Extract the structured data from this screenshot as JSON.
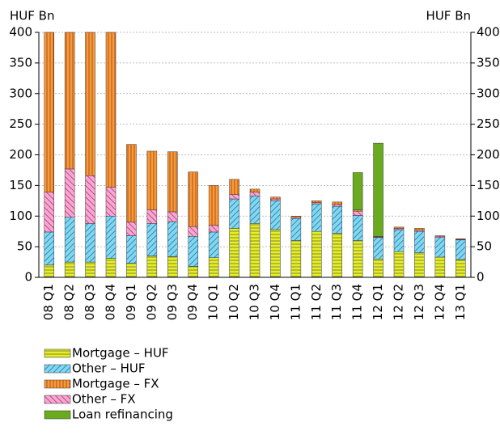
{
  "chart_data": {
    "type": "stacked-bar",
    "y_label": "HUF Bn",
    "y2_label": "HUF Bn",
    "categories": [
      "08 Q1",
      "08 Q2",
      "08 Q3",
      "08 Q4",
      "09 Q1",
      "09 Q2",
      "09 Q3",
      "09 Q4",
      "10 Q1",
      "10 Q2",
      "10 Q3",
      "10 Q4",
      "11 Q1",
      "11 Q2",
      "11 Q3",
      "11 Q4",
      "12 Q1",
      "12 Q2",
      "12 Q3",
      "12 Q4",
      "13 Q1"
    ],
    "series": [
      {
        "name": "Mortgage – HUF",
        "color": "#e6f020",
        "values": [
          20,
          25,
          25,
          31,
          23,
          35,
          34,
          18,
          32,
          80,
          88,
          78,
          60,
          75,
          72,
          60,
          30,
          42,
          40,
          33,
          29
        ]
      },
      {
        "name": "Other – HUF",
        "color": "#80d8f2",
        "values": [
          54,
          73,
          63,
          69,
          45,
          53,
          57,
          49,
          42,
          48,
          45,
          47,
          36,
          45,
          44,
          41,
          35,
          36,
          35,
          32,
          32
        ]
      },
      {
        "name": "Mortgage – FX",
        "color": "#f79a3a",
        "values": [
          261,
          223,
          234,
          253,
          127,
          96,
          98,
          89,
          65,
          25,
          5,
          3,
          2,
          3,
          4,
          2,
          1,
          2,
          3,
          1,
          1
        ]
      },
      {
        "name": "Other – FX",
        "color": "#f7a8d2",
        "values": [
          65,
          79,
          78,
          47,
          22,
          22,
          16,
          16,
          11,
          7,
          6,
          3,
          2,
          2,
          3,
          7,
          1,
          2,
          2,
          2,
          1
        ]
      },
      {
        "name": "Loan refinancing",
        "color": "#6aaa1e",
        "values": [
          0,
          0,
          0,
          0,
          0,
          0,
          0,
          0,
          0,
          0,
          0,
          0,
          0,
          0,
          0,
          61,
          152,
          0,
          0,
          0,
          0
        ]
      }
    ],
    "ylim": [
      0,
      400
    ],
    "yticks": [
      0,
      50,
      100,
      150,
      200,
      250,
      300,
      350,
      400
    ],
    "y2lim": [
      0,
      400
    ],
    "y2ticks": [
      0,
      50,
      100,
      150,
      200,
      250,
      300,
      350,
      400
    ],
    "grid": true
  }
}
